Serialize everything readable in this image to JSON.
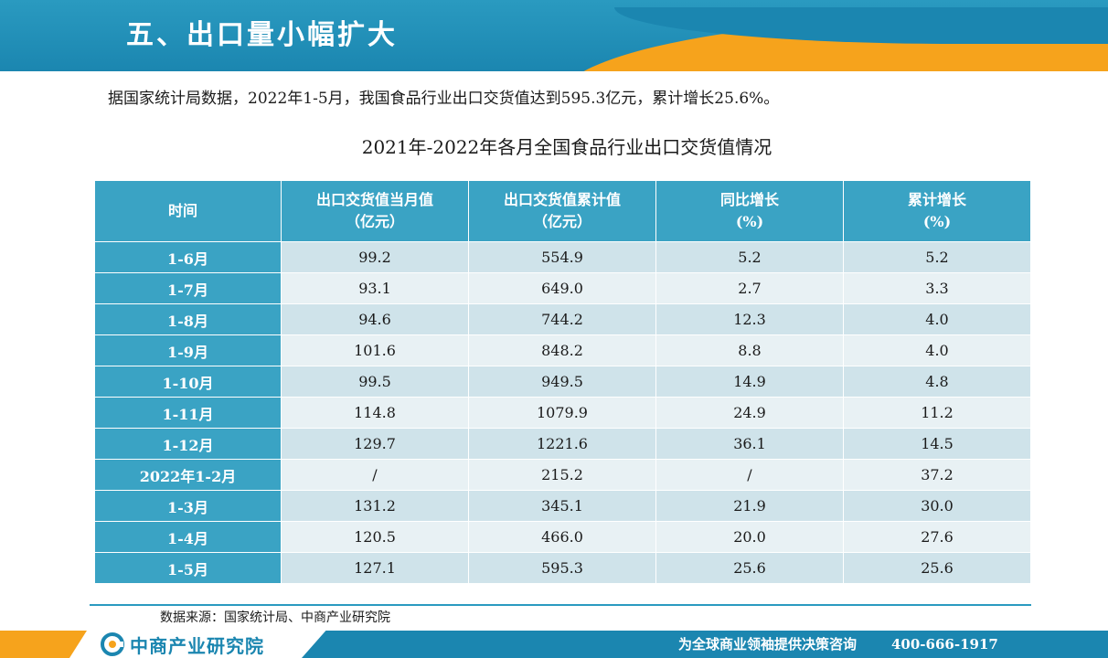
{
  "header": {
    "title": "五、出口量小幅扩大"
  },
  "lead_text": "据国家统计局数据，2022年1-5月，我国食品行业出口交货值达到595.3亿元，累计增长25.6%。",
  "table": {
    "title": "2021年-2022年各月全国食品行业出口交货值情况",
    "headers": [
      {
        "line1": "时间",
        "line2": ""
      },
      {
        "line1": "出口交货值当月值",
        "line2": "（亿元）"
      },
      {
        "line1": "出口交货值累计值",
        "line2": "（亿元）"
      },
      {
        "line1": "同比增长",
        "line2": "(%)"
      },
      {
        "line1": "累计增长",
        "line2": "(%)"
      }
    ],
    "rows": [
      {
        "period": "1-6月",
        "month_value": "99.2",
        "cumulative_value": "554.9",
        "yoy_growth": "5.2",
        "cumulative_growth": "5.2"
      },
      {
        "period": "1-7月",
        "month_value": "93.1",
        "cumulative_value": "649.0",
        "yoy_growth": "2.7",
        "cumulative_growth": "3.3"
      },
      {
        "period": "1-8月",
        "month_value": "94.6",
        "cumulative_value": "744.2",
        "yoy_growth": "12.3",
        "cumulative_growth": "4.0"
      },
      {
        "period": "1-9月",
        "month_value": "101.6",
        "cumulative_value": "848.2",
        "yoy_growth": "8.8",
        "cumulative_growth": "4.0"
      },
      {
        "period": "1-10月",
        "month_value": "99.5",
        "cumulative_value": "949.5",
        "yoy_growth": "14.9",
        "cumulative_growth": "4.8"
      },
      {
        "period": "1-11月",
        "month_value": "114.8",
        "cumulative_value": "1079.9",
        "yoy_growth": "24.9",
        "cumulative_growth": "11.2"
      },
      {
        "period": "1-12月",
        "month_value": "129.7",
        "cumulative_value": "1221.6",
        "yoy_growth": "36.1",
        "cumulative_growth": "14.5"
      },
      {
        "period": "2022年1-2月",
        "month_value": "/",
        "cumulative_value": "215.2",
        "yoy_growth": "/",
        "cumulative_growth": "37.2"
      },
      {
        "period": "1-3月",
        "month_value": "131.2",
        "cumulative_value": "345.1",
        "yoy_growth": "21.9",
        "cumulative_growth": "30.0"
      },
      {
        "period": "1-4月",
        "month_value": "120.5",
        "cumulative_value": "466.0",
        "yoy_growth": "20.0",
        "cumulative_growth": "27.6"
      },
      {
        "period": "1-5月",
        "month_value": "127.1",
        "cumulative_value": "595.3",
        "yoy_growth": "25.6",
        "cumulative_growth": "25.6"
      }
    ]
  },
  "source_text": "数据来源：国家统计局、中商产业研究院",
  "footer": {
    "logo_text": "中商产业研究院",
    "slogan": "为全球商业领袖提供决策咨询",
    "phone": "400-666-1917"
  },
  "colors": {
    "header_blue": "#1b86b0",
    "accent_orange": "#f6a31c",
    "table_header": "#3aa3c4",
    "row_light": "#e8f1f4",
    "row_dark": "#cfe3ea"
  }
}
